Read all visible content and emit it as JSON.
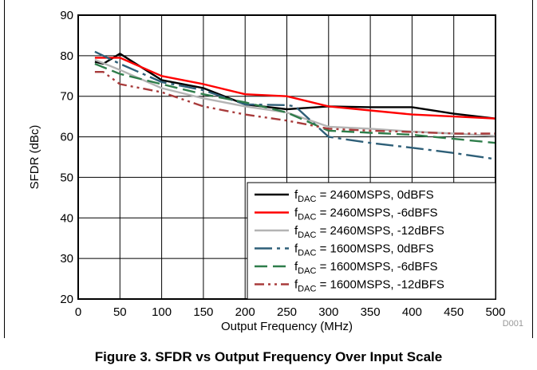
{
  "chart_data": {
    "type": "line",
    "xlabel": "Output Frequency (MHz)",
    "ylabel": "SFDR (dBc)",
    "xlim": [
      0,
      500
    ],
    "ylim": [
      20,
      90
    ],
    "x_ticks": [
      "0",
      "50",
      "100",
      "150",
      "200",
      "250",
      "300",
      "350",
      "400",
      "450",
      "500"
    ],
    "y_ticks": [
      "20",
      "30",
      "40",
      "50",
      "60",
      "70",
      "80",
      "90"
    ],
    "grid": true,
    "legend_position": "bottom-right",
    "series": [
      {
        "name": "fDAC = 2460MSPS, 0dBFS",
        "legend_main": "f",
        "legend_sub": "DAC",
        "legend_rest": " = 2460MSPS, 0dBFS",
        "color": "#000000",
        "dash": "solid",
        "x": [
          20,
          30,
          50,
          100,
          150,
          200,
          250,
          300,
          350,
          400,
          450,
          500
        ],
        "y": [
          78.5,
          78,
          80.5,
          74,
          72,
          68,
          66.8,
          67.5,
          67.3,
          67.3,
          65.7,
          64.5
        ]
      },
      {
        "name": "fDAC = 2460MSPS, -6dBFS",
        "legend_main": "f",
        "legend_sub": "DAC",
        "legend_rest": " = 2460MSPS, -6dBFS",
        "color": "#ff0000",
        "dash": "solid",
        "x": [
          20,
          50,
          100,
          150,
          200,
          250,
          300,
          350,
          400,
          450,
          500
        ],
        "y": [
          79.5,
          79.5,
          75,
          73,
          70.5,
          70,
          67.5,
          66.5,
          65.5,
          65,
          64.5
        ]
      },
      {
        "name": "fDAC = 2460MSPS, -12dBFS",
        "legend_main": "f",
        "legend_sub": "DAC",
        "legend_rest": " = 2460MSPS, -12dBFS",
        "color": "#b4b4b4",
        "dash": "solid",
        "x": [
          20,
          50,
          100,
          150,
          200,
          250,
          300,
          350,
          400,
          450,
          500
        ],
        "y": [
          79,
          76.5,
          72,
          69.5,
          67.5,
          66,
          62.5,
          62,
          61.3,
          60.8,
          60.2
        ]
      },
      {
        "name": "fDAC = 1600MSPS, 0dBFS",
        "legend_main": "f",
        "legend_sub": "DAC",
        "legend_rest": " = 1600MSPS, 0dBFS",
        "color": "#2e5f78",
        "dash": "longdash",
        "x": [
          20,
          50,
          100,
          150,
          200,
          250,
          260,
          300,
          350,
          400,
          450,
          500
        ],
        "y": [
          81,
          78,
          73.5,
          71.5,
          68,
          67.8,
          67.5,
          60,
          58.5,
          57.3,
          56,
          54.5
        ]
      },
      {
        "name": "fDAC = 1600MSPS, -6dBFS",
        "legend_main": "f",
        "legend_sub": "DAC",
        "legend_rest": " = 1600MSPS, -6dBFS",
        "color": "#2e7d4a",
        "dash": "dash",
        "x": [
          20,
          50,
          100,
          150,
          200,
          250,
          300,
          350,
          400,
          450,
          500
        ],
        "y": [
          78,
          75.5,
          73,
          70.5,
          68.5,
          66,
          61.5,
          61,
          60.5,
          59.5,
          58.5
        ]
      },
      {
        "name": "fDAC = 1600MSPS, -12dBFS",
        "legend_main": "f",
        "legend_sub": "DAC",
        "legend_rest": " = 1600MSPS, -12dBFS",
        "color": "#a83b3b",
        "dash": "dashdot",
        "x": [
          20,
          30,
          50,
          100,
          150,
          200,
          250,
          300,
          350,
          400,
          450,
          500
        ],
        "y": [
          76,
          76,
          73,
          71,
          67.5,
          65.5,
          64,
          62,
          61.5,
          61.2,
          60.8,
          60.8
        ]
      }
    ],
    "footer_id": "D001"
  },
  "caption": "Figure 3. SFDR vs Output Frequency Over Input Scale"
}
